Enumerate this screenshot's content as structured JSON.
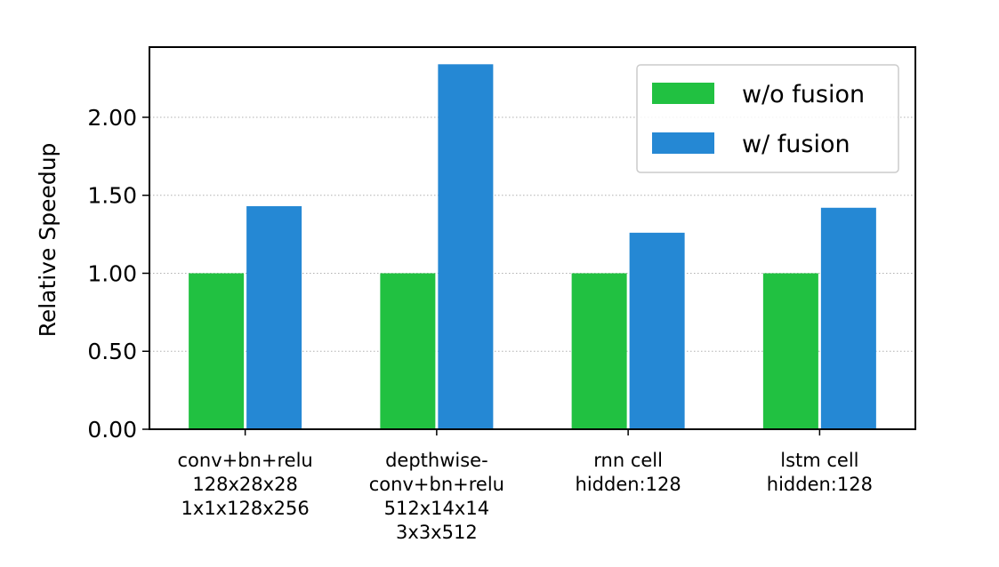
{
  "chart_data": {
    "type": "bar",
    "title": "",
    "xlabel": "",
    "ylabel": "Relative Speedup",
    "ylim": [
      0,
      2.45
    ],
    "yticks": [
      0.0,
      0.5,
      1.0,
      1.5,
      2.0
    ],
    "ytick_labels": [
      "0.00",
      "0.50",
      "1.00",
      "1.50",
      "2.00"
    ],
    "grid": "horizontal dotted",
    "legend_position": "top-right",
    "categories": [
      [
        "conv+bn+relu",
        "128x28x28",
        "1x1x128x256"
      ],
      [
        "depthwise-",
        "conv+bn+relu",
        "512x14x14",
        "3x3x512"
      ],
      [
        "rnn cell",
        "hidden:128"
      ],
      [
        "lstm cell",
        "hidden:128"
      ]
    ],
    "series": [
      {
        "name": "w/o fusion",
        "color": "#21c141",
        "values": [
          1.0,
          1.0,
          1.0,
          1.0
        ]
      },
      {
        "name": "w/ fusion",
        "color": "#2588d4",
        "values": [
          1.43,
          2.34,
          1.26,
          1.42
        ]
      }
    ]
  }
}
